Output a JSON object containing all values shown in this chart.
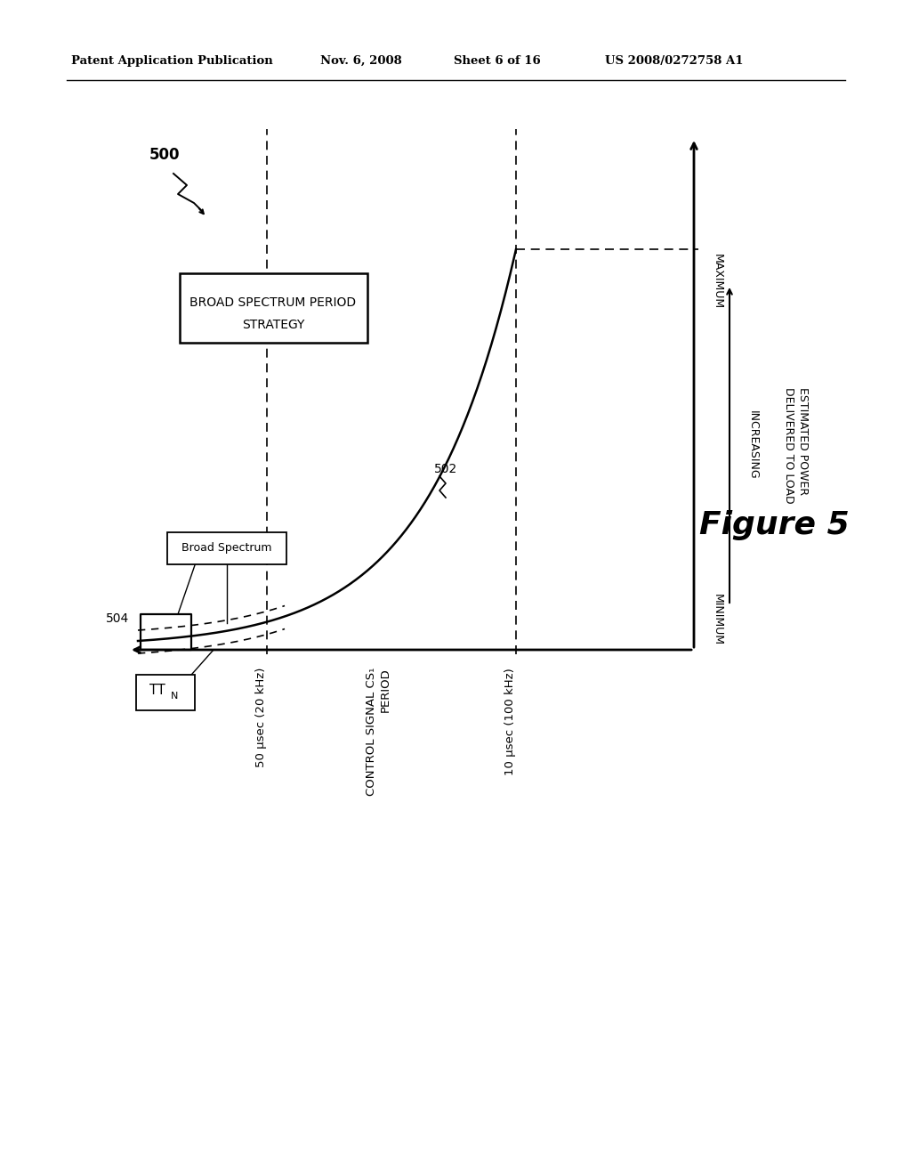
{
  "bg_color": "#ffffff",
  "header_text": "Patent Application Publication",
  "header_date": "Nov. 6, 2008",
  "header_sheet": "Sheet 6 of 16",
  "header_patent": "US 2008/0272758 A1",
  "figure_label": "Figure 5",
  "figure_number": "500",
  "label_502": "502",
  "label_504": "504",
  "label_broad_spectrum_box": "Broad Spectrum",
  "label_broad_spectrum_period_line1": "BROAD SPECTRUM PERIOD",
  "label_broad_spectrum_period_line2": "STRATEGY",
  "label_50usec": "50 μsec (20 kHz)",
  "label_control_signal_line1": "CONTROL SIGNAL CS₁",
  "label_control_signal_line2": "PERIOD",
  "label_10usec": "10 μsec (100 kHz)",
  "label_minimum": "MINIMUM",
  "label_maximum": "MAXIMUM",
  "label_increasing": "INCREASING",
  "label_est_power_line1": "ESTIMATED POWER",
  "label_est_power_line2": "DELIVERED TO LOAD"
}
